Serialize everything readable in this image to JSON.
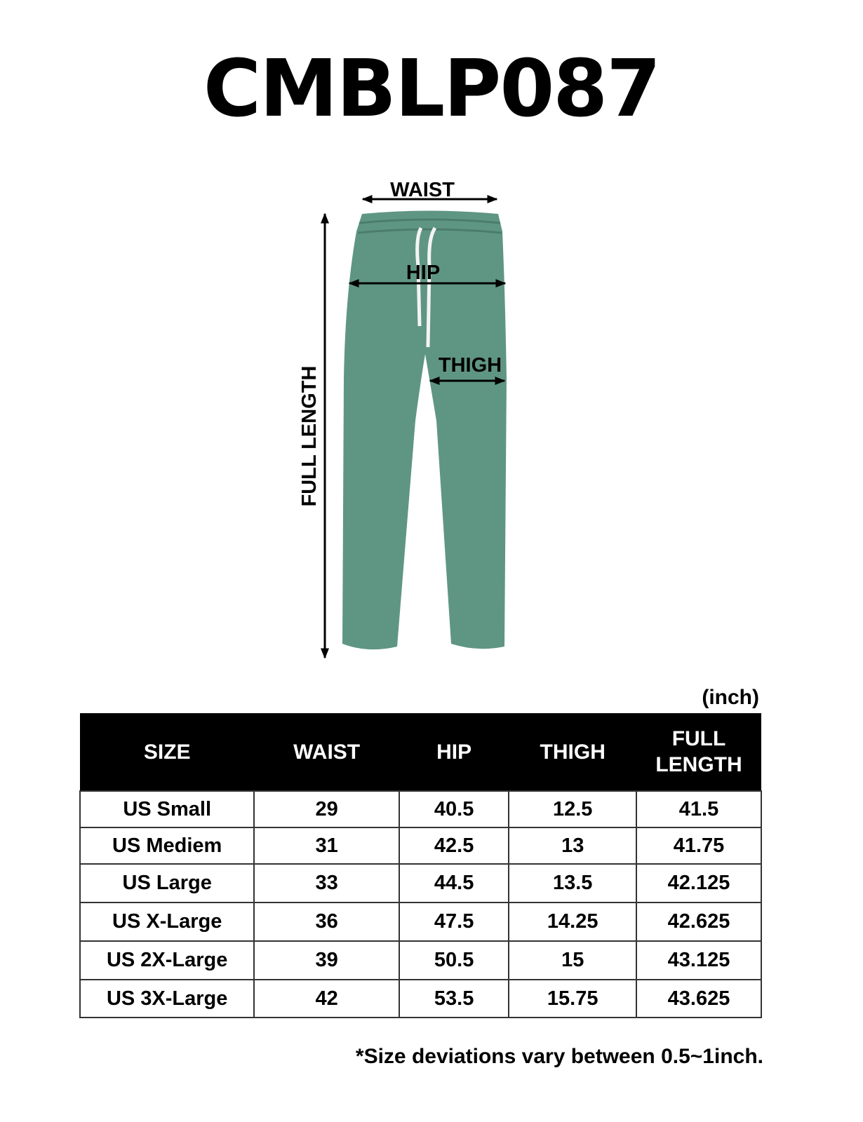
{
  "title": "CMBLP087",
  "diagram": {
    "garment_color": "#5f9683",
    "labels": {
      "waist": "WAIST",
      "hip": "HIP",
      "thigh": "THIGH",
      "full_length": "FULL LENGTH"
    }
  },
  "unit": "(inch)",
  "table": {
    "headers": [
      "SIZE",
      "WAIST",
      "HIP",
      "THIGH",
      "FULL LENGTH"
    ],
    "rows": [
      [
        "US Small",
        "29",
        "40.5",
        "12.5",
        "41.5"
      ],
      [
        "US Mediem",
        "31",
        "42.5",
        "13",
        "41.75"
      ],
      [
        "US Large",
        "33",
        "44.5",
        "13.5",
        "42.125"
      ],
      [
        "US X-Large",
        "36",
        "47.5",
        "14.25",
        "42.625"
      ],
      [
        "US 2X-Large",
        "39",
        "50.5",
        "15",
        "43.125"
      ],
      [
        "US 3X-Large",
        "42",
        "53.5",
        "15.75",
        "43.625"
      ]
    ]
  },
  "note": "*Size deviations vary between 0.5~1inch."
}
